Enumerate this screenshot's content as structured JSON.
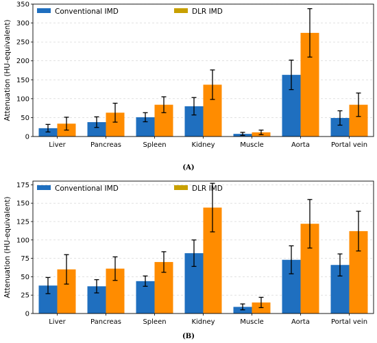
{
  "chart_data": [
    {
      "type": "bar",
      "panel_label": "(A)",
      "categories": [
        "Liver",
        "Pancreas",
        "Spleen",
        "Kidney",
        "Muscle",
        "Aorta",
        "Portal vein"
      ],
      "ylabel": "Attenuation (HU-equivalent)",
      "xlabel": "",
      "ylim": [
        0,
        350
      ],
      "yticks": [
        0,
        50,
        100,
        150,
        200,
        250,
        300,
        350
      ],
      "grid": "y-dashed",
      "legend_placement": "top-left",
      "series": [
        {
          "name": "Conventional IMD",
          "color": "#1f6fbf",
          "values": [
            22,
            38,
            51,
            80,
            7,
            163,
            49
          ],
          "errors": [
            10,
            14,
            12,
            23,
            4,
            39,
            19
          ]
        },
        {
          "name": "DLR IMD",
          "color": "#ff8c00",
          "legend_color": "#c8a000",
          "values": [
            34,
            63,
            84,
            137,
            11,
            274,
            84
          ],
          "errors": [
            17,
            25,
            21,
            39,
            6,
            64,
            31
          ]
        }
      ]
    },
    {
      "type": "bar",
      "panel_label": "(B)",
      "categories": [
        "Liver",
        "Pancreas",
        "Spleen",
        "Kidney",
        "Muscle",
        "Aorta",
        "Portal vein"
      ],
      "ylabel": "Attenuation (HU-equivalent)",
      "xlabel": "",
      "ylim": [
        0,
        180
      ],
      "yticks": [
        0,
        25,
        50,
        75,
        100,
        125,
        150,
        175
      ],
      "grid": "y-dashed",
      "legend_placement": "top-left",
      "series": [
        {
          "name": "Conventional IMD",
          "color": "#1f6fbf",
          "values": [
            38,
            37,
            44,
            82,
            9,
            73,
            66
          ],
          "errors": [
            11,
            9,
            7,
            18,
            4,
            19,
            15
          ]
        },
        {
          "name": "DLR IMD",
          "color": "#ff8c00",
          "legend_color": "#c8a000",
          "values": [
            60,
            61,
            70,
            144,
            15,
            122,
            112
          ],
          "errors": [
            20,
            16,
            14,
            33,
            7,
            33,
            27
          ]
        }
      ]
    }
  ]
}
